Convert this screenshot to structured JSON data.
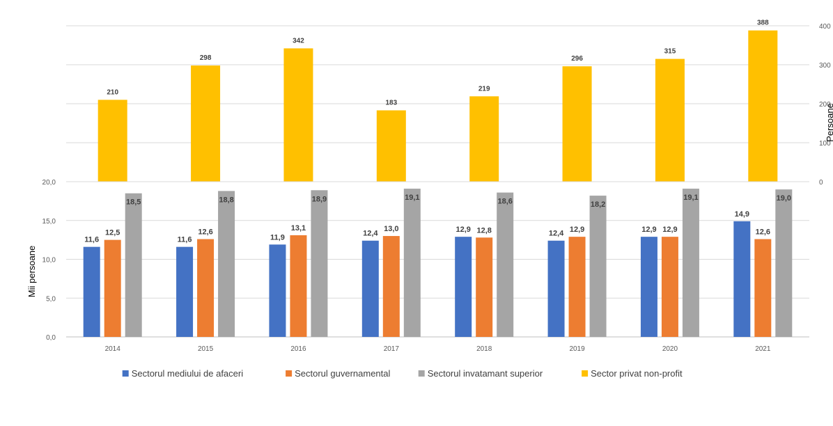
{
  "chart_data": [
    {
      "type": "bar",
      "categories": [
        "2014",
        "2015",
        "2016",
        "2017",
        "2018",
        "2019",
        "2020",
        "2021"
      ],
      "series": [
        {
          "name": "Sector privat non-profit",
          "values": [
            210,
            298,
            342,
            183,
            219,
            296,
            315,
            388
          ],
          "labels": [
            "210",
            "298",
            "342",
            "183",
            "219",
            "296",
            "315",
            "388"
          ]
        }
      ],
      "ylabel": "Persoane",
      "ylim": [
        0,
        400
      ],
      "yticks": [
        "0",
        "100",
        "200",
        "300",
        "400"
      ],
      "y_axis_side": "right",
      "grid": true
    },
    {
      "type": "bar",
      "categories": [
        "2014",
        "2015",
        "2016",
        "2017",
        "2018",
        "2019",
        "2020",
        "2021"
      ],
      "series": [
        {
          "name": "Sectorul mediului de afaceri",
          "values": [
            11.6,
            11.6,
            11.9,
            12.4,
            12.9,
            12.4,
            12.9,
            14.9
          ],
          "labels": [
            "11,6",
            "11,6",
            "11,9",
            "12,4",
            "12,9",
            "12,4",
            "12,9",
            "14,9"
          ]
        },
        {
          "name": "Sectorul guvernamental",
          "values": [
            12.5,
            12.6,
            13.1,
            13.0,
            12.8,
            12.9,
            12.9,
            12.6
          ],
          "labels": [
            "12,5",
            "12,6",
            "13,1",
            "13,0",
            "12,8",
            "12,9",
            "12,9",
            "12,6"
          ]
        },
        {
          "name": "Sectorul invatamant superior",
          "values": [
            18.5,
            18.8,
            18.9,
            19.1,
            18.6,
            18.2,
            19.1,
            19.0
          ],
          "labels": [
            "18,5",
            "18,8",
            "18,9",
            "19,1",
            "18,6",
            "18,2",
            "19,1",
            "19,0"
          ]
        }
      ],
      "xlabels": [
        "2014",
        "2015",
        "2016",
        "2017",
        "2018",
        "2019",
        "2020",
        "2021"
      ],
      "ylabel": "Mii persoane",
      "ylim": [
        0,
        20
      ],
      "yticks": [
        "0,0",
        "5,0",
        "10,0",
        "15,0",
        "20,0"
      ],
      "y_axis_side": "left",
      "grid": true
    }
  ],
  "legend": {
    "placement": "bottom",
    "items": [
      {
        "label": "Sectorul mediului de afaceri",
        "color": "#4472C4"
      },
      {
        "label": "Sectorul guvernamental",
        "color": "#ED7D31"
      },
      {
        "label": "Sectorul invatamant superior",
        "color": "#A5A5A5"
      },
      {
        "label": "Sector privat non-profit",
        "color": "#FFC000"
      }
    ]
  },
  "colors": {
    "business": "#4472C4",
    "government": "#ED7D31",
    "higher_education": "#A5A5A5",
    "non_profit": "#FFC000",
    "grid": "#D9D9D9"
  }
}
